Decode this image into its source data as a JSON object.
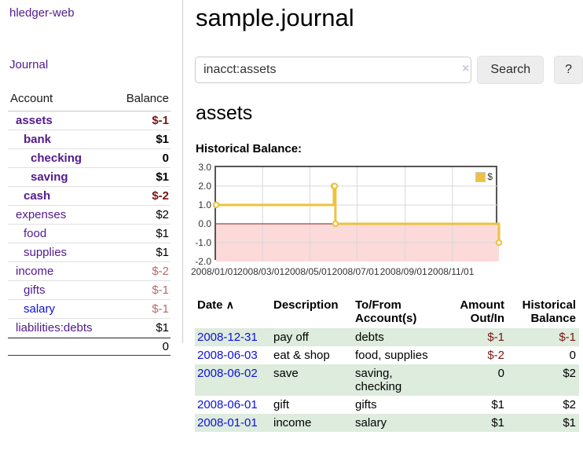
{
  "app": {
    "title": "hledger-web"
  },
  "colors": {
    "link_purple": "#521a8c",
    "link_blue": "#0f0fdd",
    "negative_strong": "#7d1414",
    "negative_soft": "#b96a6a",
    "row_stripe_green": "#ddecdd",
    "chart_line_gold": "#edc240",
    "chart_negative_fill": "#fcdada",
    "chart_zero_line": "#8b1a1a"
  },
  "sidebar": {
    "journal_label": "Journal",
    "table": {
      "account_header": "Account",
      "balance_header": "Balance",
      "total": "0"
    },
    "accounts": [
      {
        "name": "assets",
        "balance": "$-1"
      },
      {
        "name": "bank",
        "balance": "$1"
      },
      {
        "name": "checking",
        "balance": "0"
      },
      {
        "name": "saving",
        "balance": "$1"
      },
      {
        "name": "cash",
        "balance": "$-2"
      },
      {
        "name": "expenses",
        "balance": "$2"
      },
      {
        "name": "food",
        "balance": "$1"
      },
      {
        "name": "supplies",
        "balance": "$1"
      },
      {
        "name": "income",
        "balance": "$-2"
      },
      {
        "name": "gifts",
        "balance": "$-1"
      },
      {
        "name": "salary",
        "balance": "$-1"
      },
      {
        "name": "liabilities:debts",
        "balance": "$1"
      }
    ]
  },
  "main": {
    "title": "sample.journal",
    "search": {
      "value": "inacct:assets",
      "clear_icon": "×",
      "button_label": "Search",
      "help_label": "?"
    },
    "account_heading": "assets",
    "section_label": "Historical Balance:"
  },
  "chart_data": {
    "type": "line",
    "step": true,
    "title": "Historical Balance",
    "x_range": [
      "2008-01-01",
      "2008-12-31"
    ],
    "ylim": [
      -2,
      3
    ],
    "yticks": [
      3,
      2,
      1,
      0,
      -1,
      -2
    ],
    "xtick_labels": [
      "2008/01/01",
      "2008/03/01",
      "2008/05/01",
      "2008/07/01",
      "2008/09/01",
      "2008/11/01"
    ],
    "series": [
      {
        "name": "$",
        "points": [
          [
            "2008-01-01",
            1
          ],
          [
            "2008-06-01",
            2
          ],
          [
            "2008-06-02",
            2
          ],
          [
            "2008-06-03",
            0
          ],
          [
            "2008-12-31",
            -1
          ]
        ]
      }
    ],
    "legend_position": "top-right",
    "grid": true
  },
  "journal_table": {
    "headers": {
      "date": "Date",
      "sort_indicator": "∧",
      "description": "Description",
      "accounts": "To/From Account(s)",
      "amount": "Amount Out/In",
      "balance": "Historical Balance"
    },
    "rows": [
      {
        "date": "2008-12-31",
        "description": "pay off",
        "accounts": "debts",
        "amount": "$-1",
        "balance": "$-1"
      },
      {
        "date": "2008-06-03",
        "description": "eat & shop",
        "accounts": "food, supplies",
        "amount": "$-2",
        "balance": "0"
      },
      {
        "date": "2008-06-02",
        "description": "save",
        "accounts": "saving, checking",
        "amount": "0",
        "balance": "$2"
      },
      {
        "date": "2008-06-01",
        "description": "gift",
        "accounts": "gifts",
        "amount": "$1",
        "balance": "$2"
      },
      {
        "date": "2008-01-01",
        "description": "income",
        "accounts": "salary",
        "amount": "$1",
        "balance": "$1"
      }
    ]
  }
}
